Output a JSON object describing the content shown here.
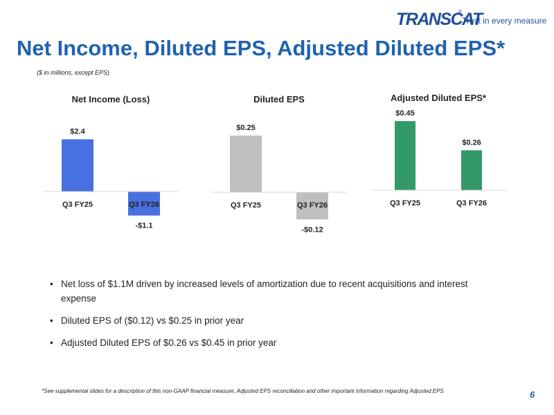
{
  "logo": {
    "name": "TRANSCAT",
    "registered": "®",
    "tagline": "Trust in every measure"
  },
  "title": "Net Income, Diluted EPS, Adjusted Diluted EPS*",
  "subtitle": "($ in millions, except EPS)",
  "chart_data": [
    {
      "type": "bar",
      "title": "Net Income (Loss)",
      "categories": [
        "Q3 FY25",
        "Q3 FY26"
      ],
      "values": [
        2.4,
        -1.1
      ],
      "data_labels": [
        "$2.4",
        "-$1.1"
      ],
      "color": "#4870e0",
      "xlabel": "",
      "ylabel": ""
    },
    {
      "type": "bar",
      "title": "Diluted EPS",
      "categories": [
        "Q3 FY25",
        "Q3 FY26"
      ],
      "values": [
        0.25,
        -0.12
      ],
      "data_labels": [
        "$0.25",
        "-$0.12"
      ],
      "color": "#bfbfbf",
      "xlabel": "",
      "ylabel": ""
    },
    {
      "type": "bar",
      "title": "Adjusted Diluted EPS*",
      "categories": [
        "Q3 FY25",
        "Q3 FY26"
      ],
      "values": [
        0.45,
        0.26
      ],
      "data_labels": [
        "$0.45",
        "$0.26"
      ],
      "color": "#339966",
      "xlabel": "",
      "ylabel": ""
    }
  ],
  "bullets": [
    "Net loss of $1.1M driven by increased levels of amortization due to recent acquisitions and interest expense",
    "Diluted EPS of ($0.12) vs $0.25 in prior year",
    "Adjusted Diluted EPS of $0.26 vs $0.45 in prior year"
  ],
  "bullet_glyph": "•",
  "footnote": "*See supplemental slides for a description of this non-GAAP financial measure, Adjusted EPS reconciliation and other important information regarding Adjusted EPS",
  "page_number": "6"
}
